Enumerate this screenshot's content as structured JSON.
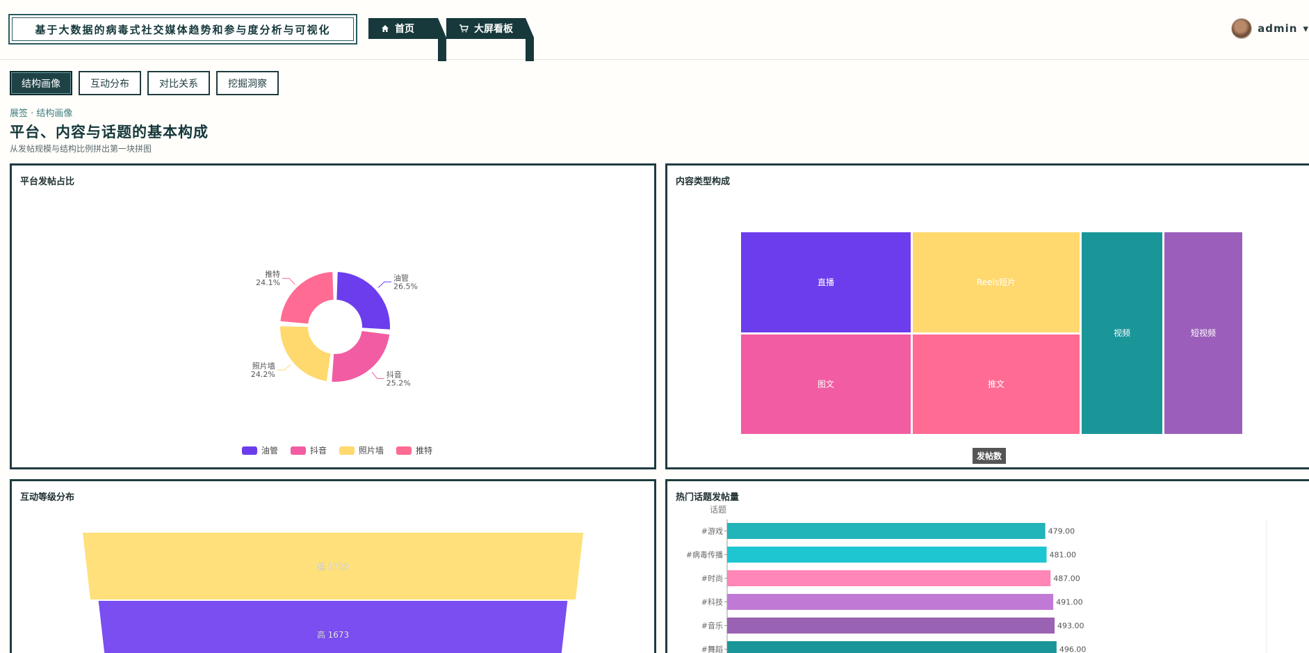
{
  "header": {
    "app_title": "基于大数据的病毒式社交媒体趋势和参与度分析与可视化",
    "nav_home": "首页",
    "nav_screen": "大屏看板",
    "username": "admin",
    "user_caret": "▾"
  },
  "tabs": [
    "结构画像",
    "互动分布",
    "对比关系",
    "挖掘洞察"
  ],
  "section": {
    "breadcrumb": "展签 · 结构画像",
    "title": "平台、内容与话题的基本构成",
    "subtitle": "从发帖规模与结构比例拼出第一块拼图"
  },
  "panels": {
    "platform": "平台发帖占比",
    "content": "内容类型构成",
    "engagement": "互动等级分布",
    "topics": "热门话题发帖量"
  },
  "colors": {
    "dark": "#1f3b3f",
    "purple": "#6c3ded",
    "pink": "#f25ca2",
    "yellow": "#ffd86e",
    "rose": "#ff6b93",
    "teal": "#1a9699",
    "lavender": "#9b5fbb"
  },
  "chart_data": [
    {
      "type": "pie",
      "labels": [
        "油管",
        "抖音",
        "照片墙",
        "推特"
      ],
      "values": [
        26.5,
        25.2,
        24.2,
        24.1
      ],
      "value_labels": [
        "26.5%",
        "25.2%",
        "24.2%",
        "24.1%"
      ],
      "colors": [
        "#6c3ded",
        "#f25ca2",
        "#ffd86e",
        "#ff6b93"
      ],
      "legend": [
        "油管",
        "抖音",
        "照片墙",
        "推特"
      ],
      "legend_position": "bottom"
    },
    {
      "type": "treemap",
      "series_name": "发帖数",
      "nodes": [
        {
          "name": "直播",
          "color": "#6c3ded"
        },
        {
          "name": "Reels短片",
          "color": "#ffd86e"
        },
        {
          "name": "视频",
          "color": "#1a9699"
        },
        {
          "name": "短视频",
          "color": "#9b5fbb"
        },
        {
          "name": "图文",
          "color": "#f25ca2"
        },
        {
          "name": "推文",
          "color": "#ff6b93"
        }
      ]
    },
    {
      "type": "funnel",
      "labels": [
        "低",
        "高"
      ],
      "values": [
        1729,
        1673
      ],
      "texts": [
        "低 1729",
        "高 1673"
      ],
      "colors": [
        "#ffe07a",
        "#7a4ef0"
      ]
    },
    {
      "type": "bar",
      "orientation": "horizontal",
      "ylabel": "话题",
      "categories": [
        "#游戏",
        "#病毒传播",
        "#时尚",
        "#科技",
        "#音乐",
        "#舞蹈"
      ],
      "values": [
        479,
        481,
        487,
        491,
        493,
        496
      ],
      "value_labels": [
        "479.00",
        "481.00",
        "487.00",
        "491.00",
        "493.00",
        "496.00"
      ],
      "colors": [
        "#21b4b8",
        "#1ec6d1",
        "#ff86b6",
        "#c07ad6",
        "#9a62b2",
        "#1a9699"
      ],
      "xlim": [
        0,
        560
      ]
    }
  ]
}
